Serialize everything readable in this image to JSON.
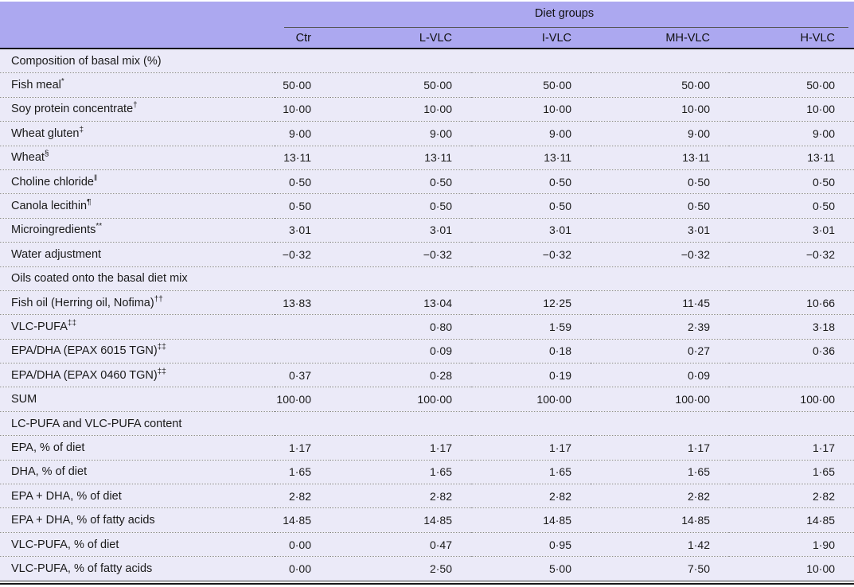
{
  "table": {
    "group_header": "Diet groups",
    "columns": [
      "Ctr",
      "L-VLC",
      "I-VLC",
      "MH-VLC",
      "H-VLC"
    ],
    "rows": [
      {
        "type": "section",
        "label": "Composition of basal mix (%)",
        "sup": "",
        "values": [
          "",
          "",
          "",
          "",
          ""
        ]
      },
      {
        "type": "data",
        "label": "Fish meal",
        "sup": "*",
        "values": [
          "50·00",
          "50·00",
          "50·00",
          "50·00",
          "50·00"
        ]
      },
      {
        "type": "data",
        "label": "Soy protein concentrate",
        "sup": "†",
        "values": [
          "10·00",
          "10·00",
          "10·00",
          "10·00",
          "10·00"
        ]
      },
      {
        "type": "data",
        "label": "Wheat gluten",
        "sup": "‡",
        "values": [
          "9·00",
          "9·00",
          "9·00",
          "9·00",
          "9·00"
        ]
      },
      {
        "type": "data",
        "label": "Wheat",
        "sup": "§",
        "values": [
          "13·11",
          "13·11",
          "13·11",
          "13·11",
          "13·11"
        ]
      },
      {
        "type": "data",
        "label": "Choline chloride",
        "sup": "‖",
        "values": [
          "0·50",
          "0·50",
          "0·50",
          "0·50",
          "0·50"
        ]
      },
      {
        "type": "data",
        "label": "Canola lecithin",
        "sup": "¶",
        "values": [
          "0·50",
          "0·50",
          "0·50",
          "0·50",
          "0·50"
        ]
      },
      {
        "type": "data",
        "label": "Microingredients",
        "sup": "**",
        "values": [
          "3·01",
          "3·01",
          "3·01",
          "3·01",
          "3·01"
        ]
      },
      {
        "type": "data",
        "label": "Water adjustment",
        "sup": "",
        "values": [
          "−0·32",
          "−0·32",
          "−0·32",
          "−0·32",
          "−0·32"
        ]
      },
      {
        "type": "section",
        "label": "Oils coated onto the basal diet mix",
        "sup": "",
        "values": [
          "",
          "",
          "",
          "",
          ""
        ]
      },
      {
        "type": "data",
        "label": "Fish oil (Herring oil, Nofima)",
        "sup": "††",
        "values": [
          "13·83",
          "13·04",
          "12·25",
          "11·45",
          "10·66"
        ]
      },
      {
        "type": "data",
        "label": "VLC-PUFA",
        "sup": "‡‡",
        "values": [
          "",
          "0·80",
          "1·59",
          "2·39",
          "3·18"
        ]
      },
      {
        "type": "data",
        "label": "EPA/DHA (EPAX 6015 TGN)",
        "sup": "‡‡",
        "values": [
          "",
          "0·09",
          "0·18",
          "0·27",
          "0·36"
        ]
      },
      {
        "type": "data",
        "label": "EPA/DHA (EPAX 0460 TGN)",
        "sup": "‡‡",
        "values": [
          "0·37",
          "0·28",
          "0·19",
          "0·09",
          ""
        ]
      },
      {
        "type": "data",
        "label": "SUM",
        "sup": "",
        "values": [
          "100·00",
          "100·00",
          "100·00",
          "100·00",
          "100·00"
        ]
      },
      {
        "type": "section",
        "label": "LC-PUFA and VLC-PUFA content",
        "sup": "",
        "values": [
          "",
          "",
          "",
          "",
          ""
        ]
      },
      {
        "type": "data",
        "label": "EPA, % of diet",
        "sup": "",
        "values": [
          "1·17",
          "1·17",
          "1·17",
          "1·17",
          "1·17"
        ]
      },
      {
        "type": "data",
        "label": "DHA, % of diet",
        "sup": "",
        "values": [
          "1·65",
          "1·65",
          "1·65",
          "1·65",
          "1·65"
        ]
      },
      {
        "type": "data",
        "label": "EPA + DHA, % of diet",
        "sup": "",
        "values": [
          "2·82",
          "2·82",
          "2·82",
          "2·82",
          "2·82"
        ]
      },
      {
        "type": "data",
        "label": "EPA + DHA, % of fatty acids",
        "sup": "",
        "values": [
          "14·85",
          "14·85",
          "14·85",
          "14·85",
          "14·85"
        ]
      },
      {
        "type": "data",
        "label": "VLC-PUFA, % of diet",
        "sup": "",
        "values": [
          "0·00",
          "0·47",
          "0·95",
          "1·42",
          "1·90"
        ]
      },
      {
        "type": "data",
        "label": "VLC-PUFA, % of fatty acids",
        "sup": "",
        "values": [
          "0·00",
          "2·50",
          "5·00",
          "7·50",
          "10·00"
        ]
      }
    ],
    "colors": {
      "header_bg": "#aca8f0",
      "body_bg": "#ebeaf8",
      "dark_rule": "#151515",
      "thin_rule": "#555555",
      "dotted_rule": "#8a8a8a"
    }
  }
}
